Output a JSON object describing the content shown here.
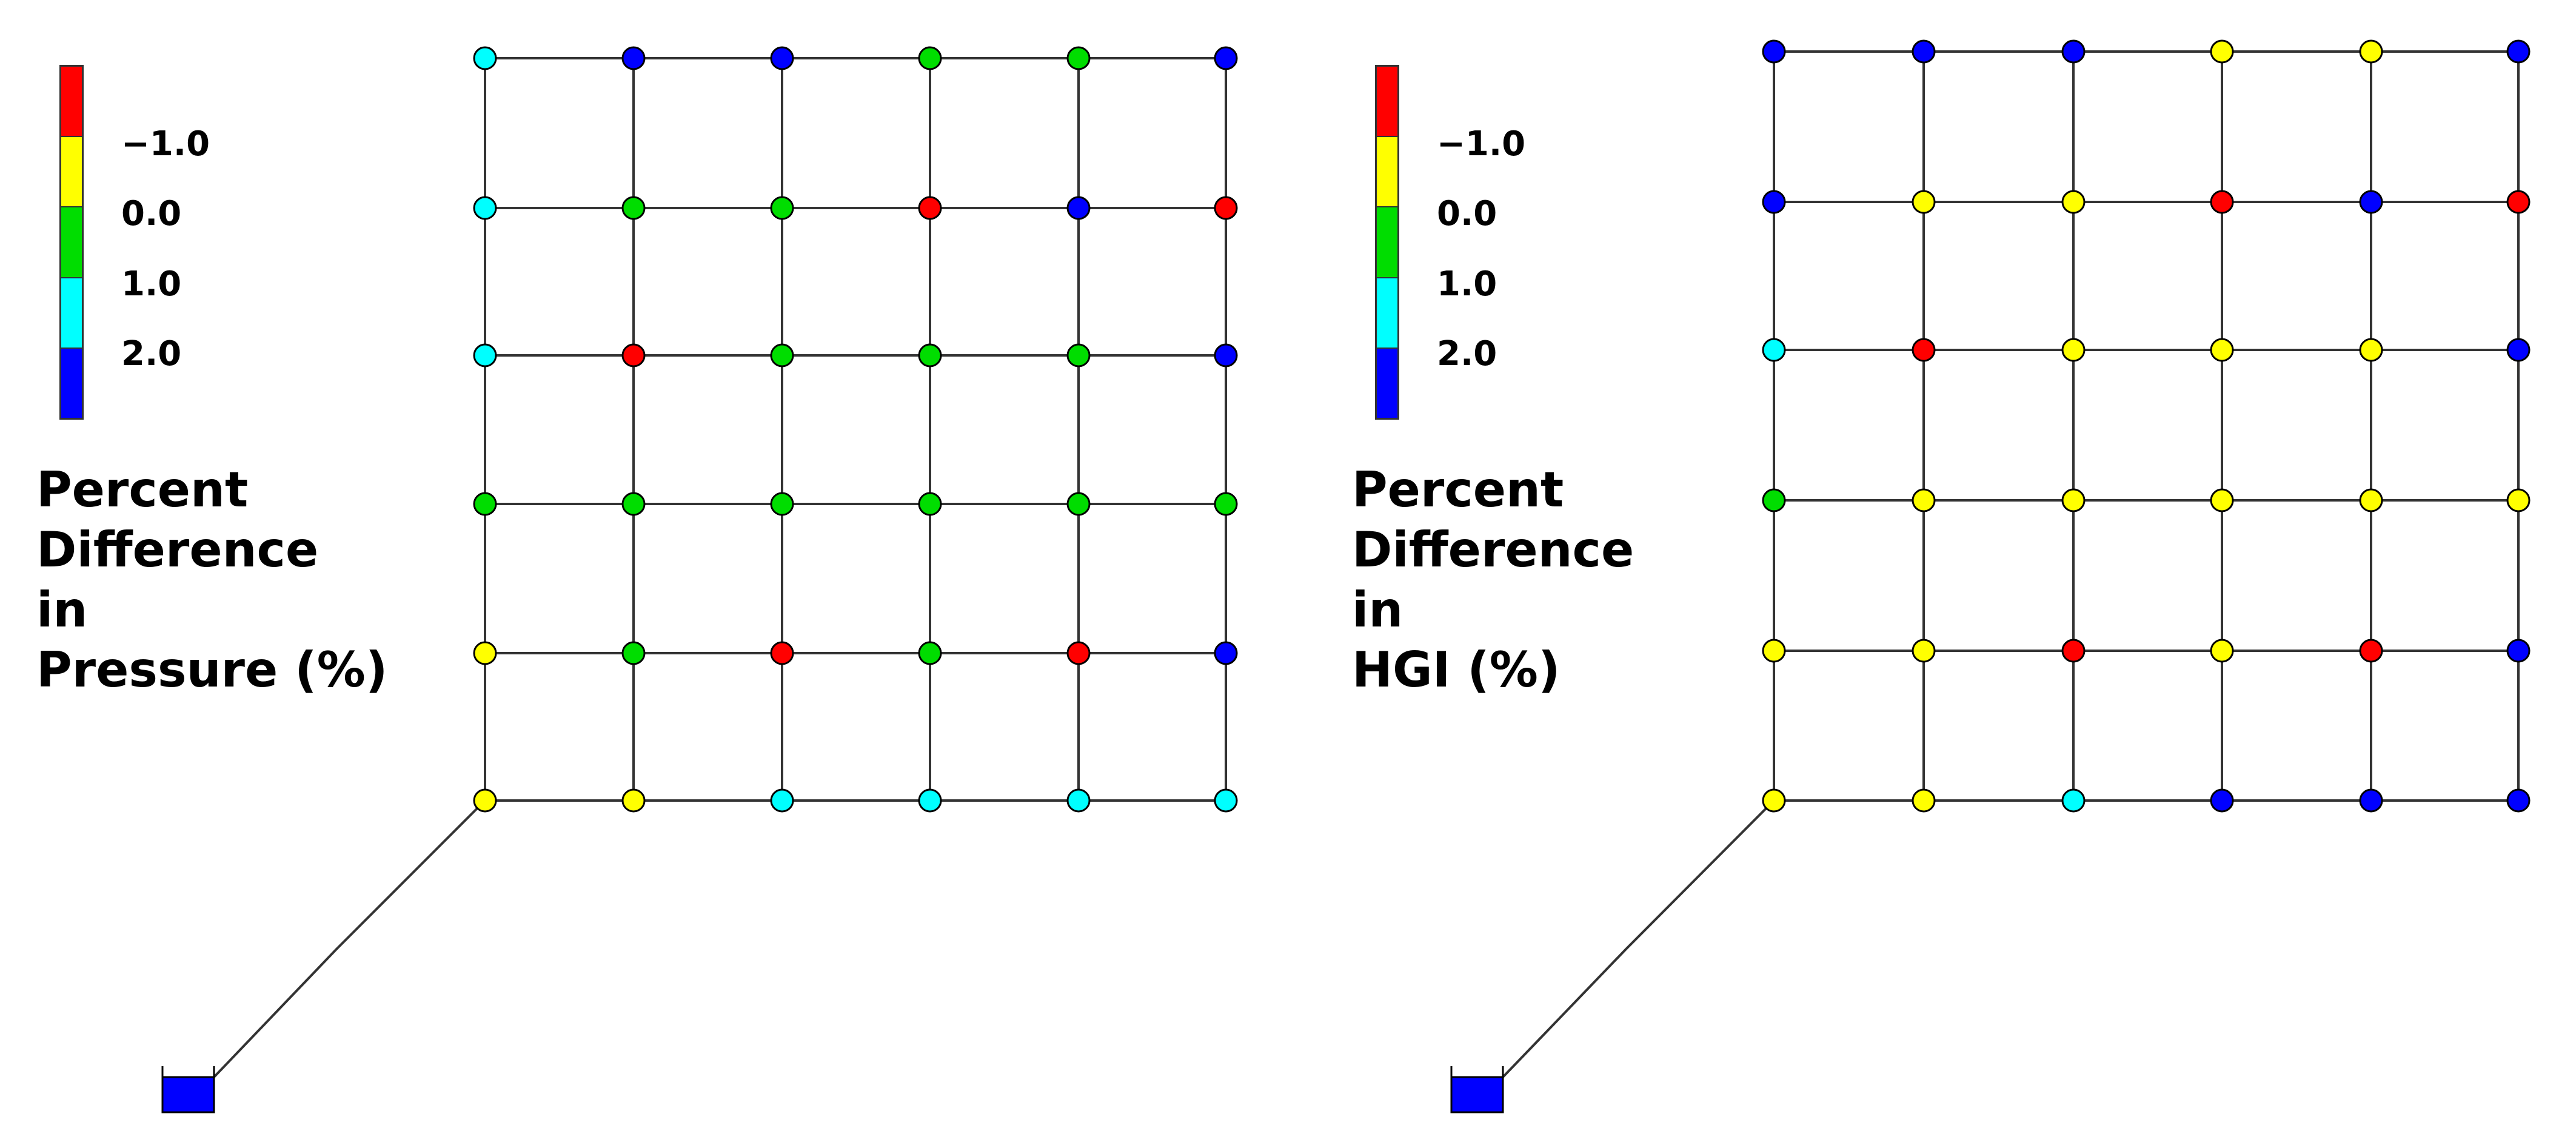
{
  "legend": {
    "colors": [
      "#ff0000",
      "#ffff00",
      "#00dd00",
      "#00ffff",
      "#0000ff"
    ],
    "ticks": [
      "−1.0",
      "0.0",
      "1.0",
      "2.0"
    ]
  },
  "panels": [
    {
      "title_lines": [
        "Percent",
        "Difference",
        "in",
        "Pressure (%)"
      ],
      "node_colors": [
        [
          "c",
          "b",
          "b",
          "g",
          "g",
          "b"
        ],
        [
          "c",
          "g",
          "g",
          "r",
          "b",
          "r"
        ],
        [
          "c",
          "r",
          "g",
          "g",
          "g",
          "b"
        ],
        [
          "g",
          "g",
          "g",
          "g",
          "g",
          "g"
        ],
        [
          "y",
          "g",
          "r",
          "g",
          "r",
          "b"
        ],
        [
          "y",
          "y",
          "c",
          "c",
          "c",
          "c"
        ]
      ]
    },
    {
      "title_lines": [
        "Percent",
        "Difference",
        "in",
        "HGI (%)"
      ],
      "node_colors": [
        [
          "b",
          "b",
          "b",
          "y",
          "y",
          "b"
        ],
        [
          "b",
          "y",
          "y",
          "r",
          "b",
          "r"
        ],
        [
          "c",
          "r",
          "y",
          "y",
          "y",
          "b"
        ],
        [
          "g",
          "y",
          "y",
          "y",
          "y",
          "y"
        ],
        [
          "y",
          "y",
          "r",
          "y",
          "r",
          "b"
        ],
        [
          "y",
          "y",
          "c",
          "b",
          "b",
          "b"
        ]
      ]
    }
  ],
  "color_key": {
    "r": "#ff0000",
    "y": "#ffff00",
    "g": "#00dd00",
    "c": "#00ffff",
    "b": "#0000ff"
  },
  "reservoir_color": "#0000ff"
}
